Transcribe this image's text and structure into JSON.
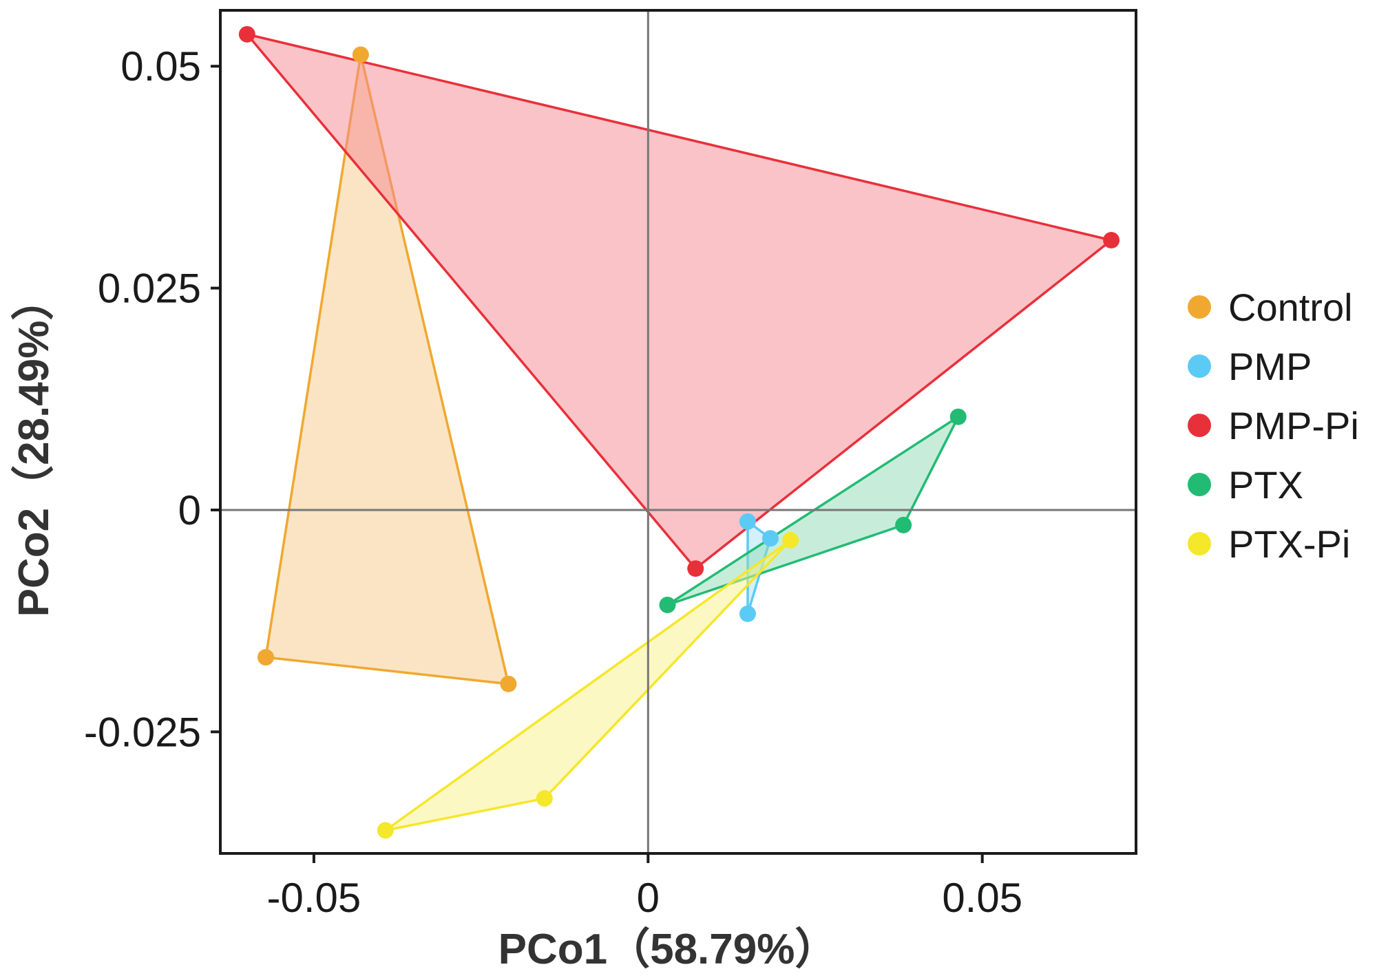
{
  "chart_data": {
    "type": "scatter",
    "subtype": "PCoA ordination with convex hulls",
    "title": "",
    "xlabel": "PCo1（58.79%）",
    "ylabel": "PCo2（28.49%）",
    "xlim": [
      -0.064,
      0.073
    ],
    "ylim": [
      -0.0387,
      0.0563
    ],
    "x_ticks": [
      -0.05,
      0,
      0.05
    ],
    "x_tick_labels": [
      "-0.05",
      "0",
      "0.05"
    ],
    "y_ticks": [
      -0.025,
      0,
      0.025,
      0.05
    ],
    "y_tick_labels": [
      "-0.025",
      "0",
      "0.025",
      "0.05"
    ],
    "reference_lines": {
      "x": 0,
      "y": 0
    },
    "grid": false,
    "legend_position": "right",
    "series": [
      {
        "name": "Control",
        "color": "#f0a830",
        "fill": "#f5c98a",
        "points": [
          [
            -0.043,
            0.0513
          ],
          [
            -0.0572,
            -0.0166
          ],
          [
            -0.0209,
            -0.0196
          ]
        ]
      },
      {
        "name": "PMP",
        "color": "#5bcbf5",
        "fill": "#a8e2f8",
        "points": [
          [
            0.0149,
            -0.0013
          ],
          [
            0.0183,
            -0.0032
          ],
          [
            0.0149,
            -0.0117
          ]
        ]
      },
      {
        "name": "PMP-Pi",
        "color": "#e8303a",
        "fill": "#f5878f",
        "points": [
          [
            -0.06,
            0.0536
          ],
          [
            0.0693,
            0.0304
          ],
          [
            0.0071,
            -0.0066
          ]
        ]
      },
      {
        "name": "PTX",
        "color": "#22bb74",
        "fill": "#8fdcb5",
        "points": [
          [
            0.0464,
            0.0105
          ],
          [
            0.0382,
            -0.0017
          ],
          [
            0.0029,
            -0.0107
          ]
        ]
      },
      {
        "name": "PTX-Pi",
        "color": "#f5e72a",
        "fill": "#faf28a",
        "points": [
          [
            0.0213,
            -0.0034
          ],
          [
            -0.0155,
            -0.0325
          ],
          [
            -0.0393,
            -0.0361
          ]
        ]
      }
    ]
  }
}
